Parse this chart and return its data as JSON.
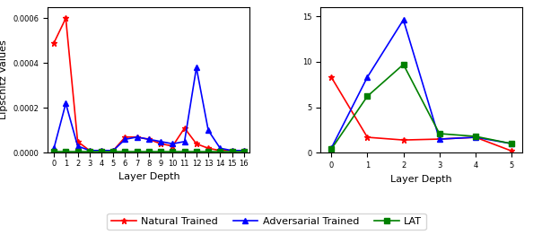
{
  "left": {
    "x": [
      0,
      1,
      2,
      3,
      4,
      5,
      6,
      7,
      8,
      9,
      10,
      11,
      12,
      13,
      14,
      15,
      16
    ],
    "natural": [
      0.00049,
      0.0006,
      5e-05,
      1e-05,
      1e-05,
      1e-05,
      7e-05,
      7e-05,
      6e-05,
      4e-05,
      3e-05,
      0.00011,
      4e-05,
      2e-05,
      1e-05,
      1e-05,
      1e-05
    ],
    "adversarial": [
      2e-05,
      0.00022,
      3e-05,
      1e-05,
      1e-05,
      1e-05,
      6e-05,
      7e-05,
      6e-05,
      5e-05,
      4e-05,
      5e-05,
      0.00038,
      0.0001,
      2e-05,
      1e-05,
      1e-05
    ],
    "lat": [
      5e-06,
      5e-06,
      5e-06,
      5e-06,
      5e-06,
      5e-06,
      5e-06,
      5e-06,
      5e-06,
      5e-06,
      5e-06,
      5e-06,
      5e-06,
      5e-06,
      5e-06,
      5e-06,
      5e-06
    ],
    "ylabel": "Lipschitz Values",
    "xlabel": "Layer Depth",
    "ylim": [
      0,
      0.00065
    ],
    "yticks": [
      0.0,
      0.0002,
      0.0004,
      0.0006
    ]
  },
  "right": {
    "x": [
      0,
      1,
      2,
      3,
      4,
      5
    ],
    "natural": [
      8.3,
      1.7,
      1.4,
      1.5,
      1.7,
      0.2
    ],
    "adversarial": [
      0.5,
      8.3,
      14.6,
      1.5,
      1.7,
      1.0
    ],
    "lat": [
      0.4,
      6.2,
      9.7,
      2.1,
      1.8,
      1.0
    ],
    "xlabel": "Layer Depth",
    "ylim": [
      0,
      16
    ],
    "yticks": [
      0,
      5,
      10,
      15
    ]
  },
  "colors": {
    "natural": "#ff0000",
    "adversarial": "#0000ff",
    "lat": "#008000"
  },
  "legend": {
    "natural_label": "Natural Trained",
    "adversarial_label": "Adversarial Trained",
    "lat_label": "LAT"
  }
}
